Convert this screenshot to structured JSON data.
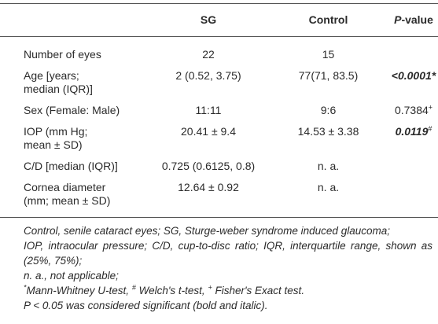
{
  "table": {
    "header": [
      null,
      "SG",
      "Control",
      [
        {
          "text": "P",
          "style": "i"
        },
        {
          "text": "-value"
        }
      ]
    ],
    "rows": [
      [
        "Number of eyes",
        "22",
        "15",
        null
      ],
      [
        [
          "Age [years;",
          "median (IQR)]"
        ],
        "2 (0.52, 3.75)",
        "77(71, 83.5)",
        [
          {
            "text": "<0.0001*",
            "style": "bi"
          }
        ]
      ],
      [
        "Sex (Female: Male)",
        "11:11",
        "9:6",
        [
          {
            "text": "0.7384"
          },
          {
            "text": "+",
            "style": "sup"
          }
        ]
      ],
      [
        [
          "IOP (mm Hg;",
          "mean ± SD)"
        ],
        "20.41 ± 9.4",
        "14.53 ± 3.38",
        [
          {
            "text": "0.0119",
            "style": "bi"
          },
          {
            "text": "#",
            "style": "sup"
          }
        ]
      ],
      [
        "C/D [median (IQR)]",
        "0.725 (0.6125, 0.8)",
        "n. a.",
        null
      ],
      [
        [
          "Cornea diameter",
          "(mm; mean ± SD)"
        ],
        "12.64 ± 0.92",
        "n. a.",
        null
      ]
    ]
  },
  "footnotes": [
    "Control, senile cataract eyes; SG, Sturge-weber syndrome induced glaucoma;",
    "IOP, intraocular pressure; C/D, cup-to-disc ratio; IQR, interquartile range, shown as (25%, 75%);",
    "n. a., not applicable;",
    [
      {
        "text": "*",
        "style": "sup"
      },
      {
        "text": "Mann-Whitney U-test, "
      },
      {
        "text": "#",
        "style": "sup"
      },
      {
        "text": " Welch's t-test, "
      },
      {
        "text": "+",
        "style": "sup"
      },
      {
        "text": " Fisher's Exact test."
      }
    ],
    "P < 0.05 was considered significant (bold and italic)."
  ]
}
